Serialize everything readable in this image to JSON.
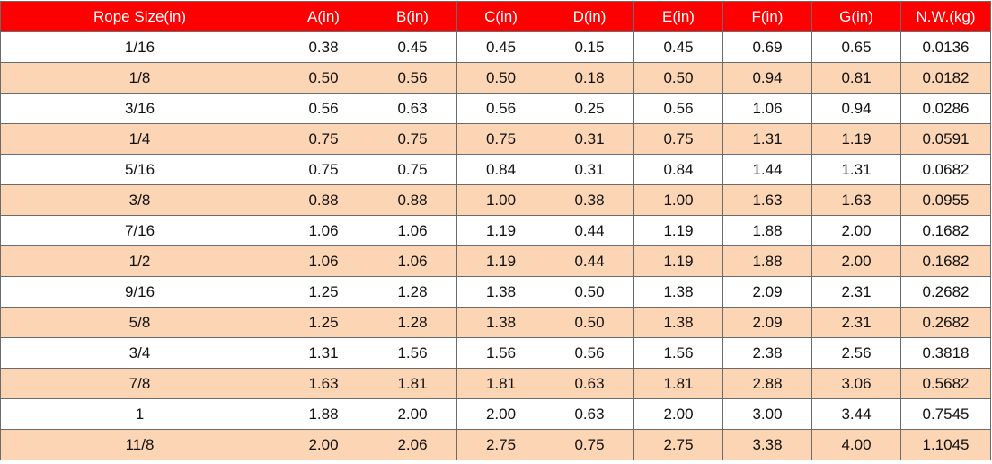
{
  "table": {
    "header": [
      "Rope Size(in)",
      "A(in)",
      "B(in)",
      "C(in)",
      "D(in)",
      "E(in)",
      "F(in)",
      "G(in)",
      "N.W.(kg)"
    ],
    "rows": [
      [
        "1/16",
        "0.38",
        "0.45",
        "0.45",
        "0.15",
        "0.45",
        "0.69",
        "0.65",
        "0.0136"
      ],
      [
        "1/8",
        "0.50",
        "0.56",
        "0.50",
        "0.18",
        "0.50",
        "0.94",
        "0.81",
        "0.0182"
      ],
      [
        "3/16",
        "0.56",
        "0.63",
        "0.56",
        "0.25",
        "0.56",
        "1.06",
        "0.94",
        "0.0286"
      ],
      [
        "1/4",
        "0.75",
        "0.75",
        "0.75",
        "0.31",
        "0.75",
        "1.31",
        "1.19",
        "0.0591"
      ],
      [
        "5/16",
        "0.75",
        "0.75",
        "0.84",
        "0.31",
        "0.84",
        "1.44",
        "1.31",
        "0.0682"
      ],
      [
        "3/8",
        "0.88",
        "0.88",
        "1.00",
        "0.38",
        "1.00",
        "1.63",
        "1.63",
        "0.0955"
      ],
      [
        "7/16",
        "1.06",
        "1.06",
        "1.19",
        "0.44",
        "1.19",
        "1.88",
        "2.00",
        "0.1682"
      ],
      [
        "1/2",
        "1.06",
        "1.06",
        "1.19",
        "0.44",
        "1.19",
        "1.88",
        "2.00",
        "0.1682"
      ],
      [
        "9/16",
        "1.25",
        "1.28",
        "1.38",
        "0.50",
        "1.38",
        "2.09",
        "2.31",
        "0.2682"
      ],
      [
        "5/8",
        "1.25",
        "1.28",
        "1.38",
        "0.50",
        "1.38",
        "2.09",
        "2.31",
        "0.2682"
      ],
      [
        "3/4",
        "1.31",
        "1.56",
        "1.56",
        "0.56",
        "1.56",
        "2.38",
        "2.56",
        "0.3818"
      ],
      [
        "7/8",
        "1.63",
        "1.81",
        "1.81",
        "0.63",
        "1.81",
        "2.88",
        "3.06",
        "0.5682"
      ],
      [
        "1",
        "1.88",
        "2.00",
        "2.00",
        "0.63",
        "2.00",
        "3.00",
        "3.44",
        "0.7545"
      ],
      [
        "11/8",
        "2.00",
        "2.06",
        "2.75",
        "0.75",
        "2.75",
        "3.38",
        "4.00",
        "1.1045"
      ]
    ]
  }
}
